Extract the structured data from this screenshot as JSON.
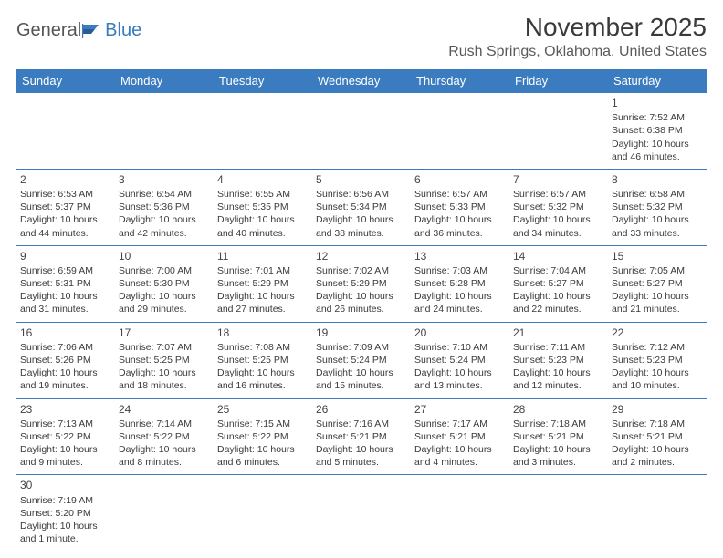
{
  "logo": {
    "general": "General",
    "blue": "Blue"
  },
  "title": "November 2025",
  "location": "Rush Springs, Oklahoma, United States",
  "colors": {
    "header_bg": "#3b7bbf",
    "header_text": "#ffffff",
    "border": "#3b7bbf",
    "text": "#3a3a3a",
    "logo_blue": "#3b7bbf",
    "logo_grey": "#555555"
  },
  "day_headers": [
    "Sunday",
    "Monday",
    "Tuesday",
    "Wednesday",
    "Thursday",
    "Friday",
    "Saturday"
  ],
  "weeks": [
    [
      null,
      null,
      null,
      null,
      null,
      null,
      {
        "n": "1",
        "lines": [
          "Sunrise: 7:52 AM",
          "Sunset: 6:38 PM",
          "Daylight: 10 hours and 46 minutes."
        ]
      }
    ],
    [
      {
        "n": "2",
        "lines": [
          "Sunrise: 6:53 AM",
          "Sunset: 5:37 PM",
          "Daylight: 10 hours and 44 minutes."
        ]
      },
      {
        "n": "3",
        "lines": [
          "Sunrise: 6:54 AM",
          "Sunset: 5:36 PM",
          "Daylight: 10 hours and 42 minutes."
        ]
      },
      {
        "n": "4",
        "lines": [
          "Sunrise: 6:55 AM",
          "Sunset: 5:35 PM",
          "Daylight: 10 hours and 40 minutes."
        ]
      },
      {
        "n": "5",
        "lines": [
          "Sunrise: 6:56 AM",
          "Sunset: 5:34 PM",
          "Daylight: 10 hours and 38 minutes."
        ]
      },
      {
        "n": "6",
        "lines": [
          "Sunrise: 6:57 AM",
          "Sunset: 5:33 PM",
          "Daylight: 10 hours and 36 minutes."
        ]
      },
      {
        "n": "7",
        "lines": [
          "Sunrise: 6:57 AM",
          "Sunset: 5:32 PM",
          "Daylight: 10 hours and 34 minutes."
        ]
      },
      {
        "n": "8",
        "lines": [
          "Sunrise: 6:58 AM",
          "Sunset: 5:32 PM",
          "Daylight: 10 hours and 33 minutes."
        ]
      }
    ],
    [
      {
        "n": "9",
        "lines": [
          "Sunrise: 6:59 AM",
          "Sunset: 5:31 PM",
          "Daylight: 10 hours and 31 minutes."
        ]
      },
      {
        "n": "10",
        "lines": [
          "Sunrise: 7:00 AM",
          "Sunset: 5:30 PM",
          "Daylight: 10 hours and 29 minutes."
        ]
      },
      {
        "n": "11",
        "lines": [
          "Sunrise: 7:01 AM",
          "Sunset: 5:29 PM",
          "Daylight: 10 hours and 27 minutes."
        ]
      },
      {
        "n": "12",
        "lines": [
          "Sunrise: 7:02 AM",
          "Sunset: 5:29 PM",
          "Daylight: 10 hours and 26 minutes."
        ]
      },
      {
        "n": "13",
        "lines": [
          "Sunrise: 7:03 AM",
          "Sunset: 5:28 PM",
          "Daylight: 10 hours and 24 minutes."
        ]
      },
      {
        "n": "14",
        "lines": [
          "Sunrise: 7:04 AM",
          "Sunset: 5:27 PM",
          "Daylight: 10 hours and 22 minutes."
        ]
      },
      {
        "n": "15",
        "lines": [
          "Sunrise: 7:05 AM",
          "Sunset: 5:27 PM",
          "Daylight: 10 hours and 21 minutes."
        ]
      }
    ],
    [
      {
        "n": "16",
        "lines": [
          "Sunrise: 7:06 AM",
          "Sunset: 5:26 PM",
          "Daylight: 10 hours and 19 minutes."
        ]
      },
      {
        "n": "17",
        "lines": [
          "Sunrise: 7:07 AM",
          "Sunset: 5:25 PM",
          "Daylight: 10 hours and 18 minutes."
        ]
      },
      {
        "n": "18",
        "lines": [
          "Sunrise: 7:08 AM",
          "Sunset: 5:25 PM",
          "Daylight: 10 hours and 16 minutes."
        ]
      },
      {
        "n": "19",
        "lines": [
          "Sunrise: 7:09 AM",
          "Sunset: 5:24 PM",
          "Daylight: 10 hours and 15 minutes."
        ]
      },
      {
        "n": "20",
        "lines": [
          "Sunrise: 7:10 AM",
          "Sunset: 5:24 PM",
          "Daylight: 10 hours and 13 minutes."
        ]
      },
      {
        "n": "21",
        "lines": [
          "Sunrise: 7:11 AM",
          "Sunset: 5:23 PM",
          "Daylight: 10 hours and 12 minutes."
        ]
      },
      {
        "n": "22",
        "lines": [
          "Sunrise: 7:12 AM",
          "Sunset: 5:23 PM",
          "Daylight: 10 hours and 10 minutes."
        ]
      }
    ],
    [
      {
        "n": "23",
        "lines": [
          "Sunrise: 7:13 AM",
          "Sunset: 5:22 PM",
          "Daylight: 10 hours and 9 minutes."
        ]
      },
      {
        "n": "24",
        "lines": [
          "Sunrise: 7:14 AM",
          "Sunset: 5:22 PM",
          "Daylight: 10 hours and 8 minutes."
        ]
      },
      {
        "n": "25",
        "lines": [
          "Sunrise: 7:15 AM",
          "Sunset: 5:22 PM",
          "Daylight: 10 hours and 6 minutes."
        ]
      },
      {
        "n": "26",
        "lines": [
          "Sunrise: 7:16 AM",
          "Sunset: 5:21 PM",
          "Daylight: 10 hours and 5 minutes."
        ]
      },
      {
        "n": "27",
        "lines": [
          "Sunrise: 7:17 AM",
          "Sunset: 5:21 PM",
          "Daylight: 10 hours and 4 minutes."
        ]
      },
      {
        "n": "28",
        "lines": [
          "Sunrise: 7:18 AM",
          "Sunset: 5:21 PM",
          "Daylight: 10 hours and 3 minutes."
        ]
      },
      {
        "n": "29",
        "lines": [
          "Sunrise: 7:18 AM",
          "Sunset: 5:21 PM",
          "Daylight: 10 hours and 2 minutes."
        ]
      }
    ],
    [
      {
        "n": "30",
        "lines": [
          "Sunrise: 7:19 AM",
          "Sunset: 5:20 PM",
          "Daylight: 10 hours and 1 minute."
        ]
      },
      null,
      null,
      null,
      null,
      null,
      null
    ]
  ]
}
